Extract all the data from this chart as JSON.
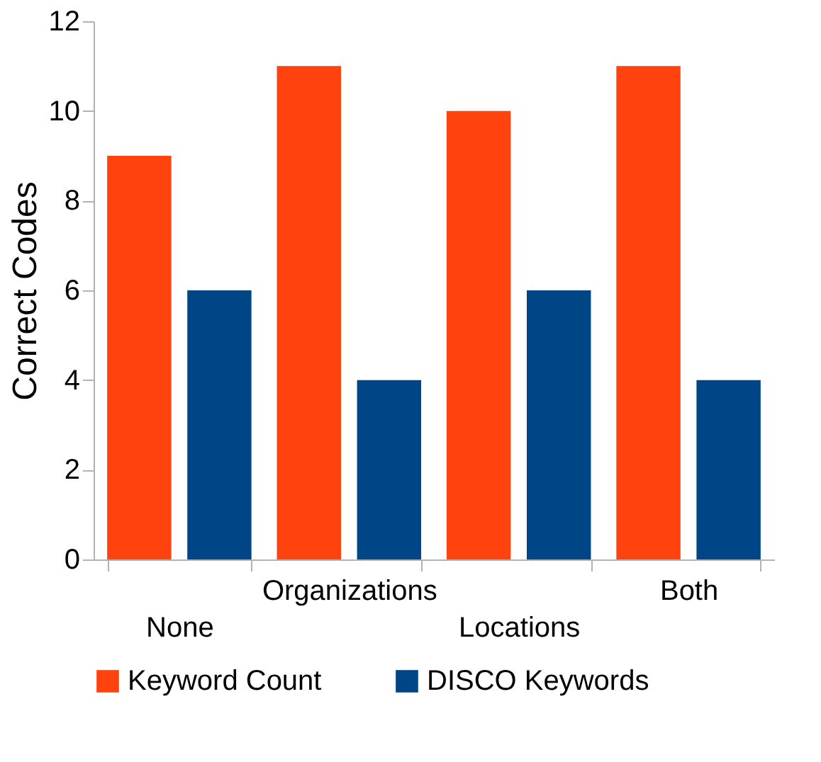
{
  "chart_data": {
    "type": "bar",
    "ylabel": "Correct Codes",
    "categories": [
      "None",
      "Organizations",
      "Locations",
      "Both"
    ],
    "series": [
      {
        "name": "Keyword Count",
        "color": "#ff420e",
        "values": [
          9,
          11,
          10,
          11
        ]
      },
      {
        "name": "DISCO Keywords",
        "color": "#004586",
        "values": [
          6,
          4,
          6,
          4
        ]
      }
    ],
    "ylim": [
      0,
      12
    ],
    "yticks": [
      0,
      2,
      4,
      6,
      8,
      10,
      12
    ],
    "grid": false,
    "legend": "bottom"
  }
}
